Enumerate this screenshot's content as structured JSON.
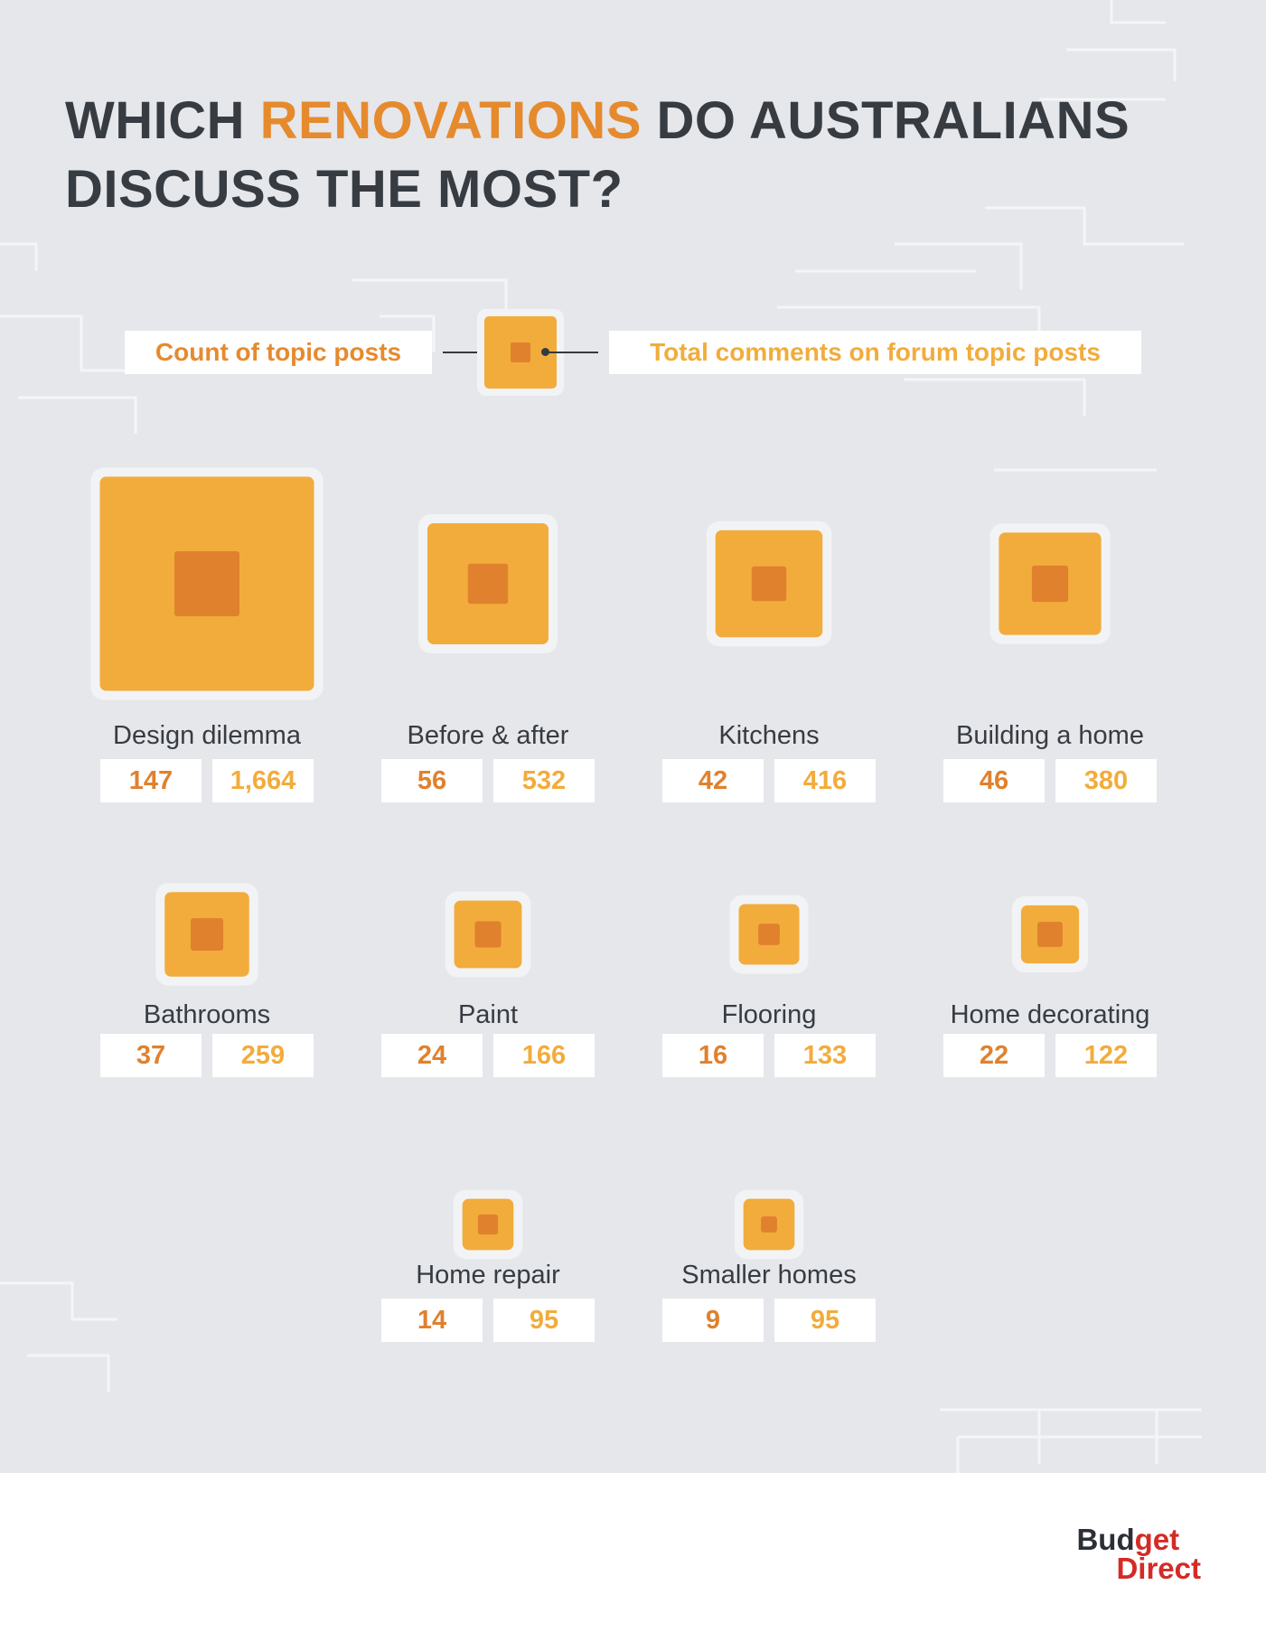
{
  "title": {
    "part1": "WHICH ",
    "highlight": "RENOVATIONS",
    "part2": " DO AUSTRALIANS",
    "line2": "DISCUSS THE MOST?"
  },
  "legend": {
    "posts_label": "Count of topic posts",
    "comments_label": "Total comments on forum topic posts"
  },
  "colors": {
    "outer": "#f2ac3c",
    "inner": "#e0812e",
    "title_highlight": "#e68a2e",
    "title": "#373c42",
    "brand_red": "#d42b26"
  },
  "chart_data": {
    "type": "nested-square",
    "metrics": [
      "Count of topic posts",
      "Total comments on forum topic posts"
    ],
    "categories": [
      {
        "label": "Design dilemma",
        "posts": 147,
        "comments": 1664,
        "posts_text": "147",
        "comments_text": "1,664"
      },
      {
        "label": "Before & after",
        "posts": 56,
        "comments": 532,
        "posts_text": "56",
        "comments_text": "532"
      },
      {
        "label": "Kitchens",
        "posts": 42,
        "comments": 416,
        "posts_text": "42",
        "comments_text": "416"
      },
      {
        "label": "Building a home",
        "posts": 46,
        "comments": 380,
        "posts_text": "46",
        "comments_text": "380"
      },
      {
        "label": "Bathrooms",
        "posts": 37,
        "comments": 259,
        "posts_text": "37",
        "comments_text": "259"
      },
      {
        "label": "Paint",
        "posts": 24,
        "comments": 166,
        "posts_text": "24",
        "comments_text": "166"
      },
      {
        "label": "Flooring",
        "posts": 16,
        "comments": 133,
        "posts_text": "16",
        "comments_text": "133"
      },
      {
        "label": "Home decorating",
        "posts": 22,
        "comments": 122,
        "posts_text": "22",
        "comments_text": "122"
      },
      {
        "label": "Home repair",
        "posts": 14,
        "comments": 95,
        "posts_text": "14",
        "comments_text": "95"
      },
      {
        "label": "Smaller homes",
        "posts": 9,
        "comments": 95,
        "posts_text": "9",
        "comments_text": "95"
      }
    ]
  },
  "brand": {
    "logo_part1": "Bud",
    "logo_part2": "get",
    "logo_line2": "Direct"
  }
}
